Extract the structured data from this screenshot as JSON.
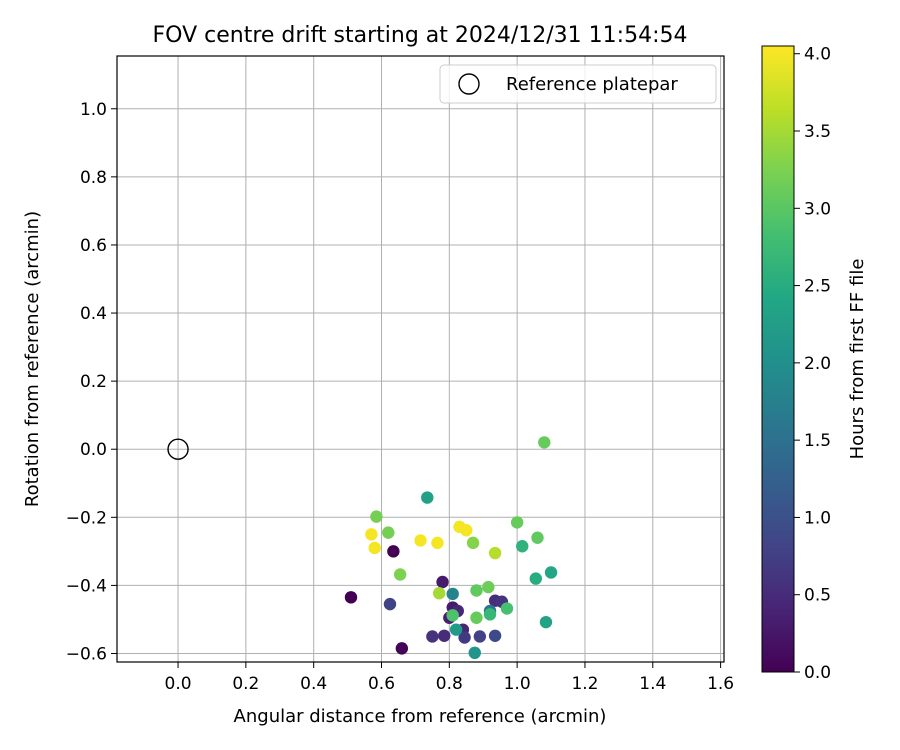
{
  "chart_data": {
    "type": "scatter",
    "title": "FOV centre drift starting at 2024/12/31 11:54:54",
    "xlabel": "Angular distance from reference (arcmin)",
    "ylabel": "Rotation from reference (arcmin)",
    "xlim": [
      -0.18,
      1.61
    ],
    "ylim": [
      -0.625,
      1.155
    ],
    "xticks": [
      0.0,
      0.2,
      0.4,
      0.6,
      0.8,
      1.0,
      1.2,
      1.4,
      1.6
    ],
    "xtick_labels": [
      "0.0",
      "0.2",
      "0.4",
      "0.6",
      "0.8",
      "1.0",
      "1.2",
      "1.4",
      "1.6"
    ],
    "yticks": [
      -0.6,
      -0.4,
      -0.2,
      0.0,
      0.2,
      0.4,
      0.6,
      0.8,
      1.0
    ],
    "ytick_labels": [
      "−0.6",
      "−0.4",
      "−0.2",
      "0.0",
      "0.2",
      "0.4",
      "0.6",
      "0.8",
      "1.0"
    ],
    "grid": true,
    "legend": {
      "position": "top-right",
      "entries": [
        "Reference platepar"
      ]
    },
    "reference_point": {
      "x": 0.0,
      "y": 0.0,
      "label": "Reference platepar"
    },
    "colorbar": {
      "label": "Hours from first FF file",
      "colormap": "viridis",
      "range": [
        0.0,
        4.05
      ],
      "ticks": [
        0.0,
        0.5,
        1.0,
        1.5,
        2.0,
        2.5,
        3.0,
        3.5,
        4.0
      ],
      "tick_labels": [
        "0.0",
        "0.5",
        "1.0",
        "1.5",
        "2.0",
        "2.5",
        "3.0",
        "3.5",
        "4.0"
      ]
    },
    "points": [
      {
        "x": 0.51,
        "y": -0.435,
        "c": 0.0
      },
      {
        "x": 0.635,
        "y": -0.3,
        "c": 0.0
      },
      {
        "x": 0.66,
        "y": -0.585,
        "c": 0.05
      },
      {
        "x": 0.78,
        "y": -0.39,
        "c": 0.3
      },
      {
        "x": 0.625,
        "y": -0.455,
        "c": 0.8
      },
      {
        "x": 0.75,
        "y": -0.55,
        "c": 0.6
      },
      {
        "x": 0.785,
        "y": -0.548,
        "c": 0.5
      },
      {
        "x": 0.81,
        "y": -0.465,
        "c": 0.3
      },
      {
        "x": 0.825,
        "y": -0.475,
        "c": 0.45
      },
      {
        "x": 0.8,
        "y": -0.495,
        "c": 0.35
      },
      {
        "x": 0.84,
        "y": -0.53,
        "c": 0.4
      },
      {
        "x": 0.845,
        "y": -0.553,
        "c": 0.7
      },
      {
        "x": 0.89,
        "y": -0.55,
        "c": 0.8
      },
      {
        "x": 0.935,
        "y": -0.445,
        "c": 0.55
      },
      {
        "x": 0.955,
        "y": -0.448,
        "c": 0.6
      },
      {
        "x": 0.935,
        "y": -0.548,
        "c": 0.9
      },
      {
        "x": 0.92,
        "y": -0.475,
        "c": 1.6
      },
      {
        "x": 0.81,
        "y": -0.425,
        "c": 1.8
      },
      {
        "x": 0.875,
        "y": -0.598,
        "c": 2.1
      },
      {
        "x": 0.82,
        "y": -0.53,
        "c": 2.2
      },
      {
        "x": 0.735,
        "y": -0.142,
        "c": 2.3
      },
      {
        "x": 1.015,
        "y": -0.285,
        "c": 2.6
      },
      {
        "x": 1.055,
        "y": -0.38,
        "c": 2.5
      },
      {
        "x": 1.1,
        "y": -0.362,
        "c": 2.4
      },
      {
        "x": 1.085,
        "y": -0.508,
        "c": 2.35
      },
      {
        "x": 0.92,
        "y": -0.485,
        "c": 2.7
      },
      {
        "x": 0.97,
        "y": -0.468,
        "c": 2.85
      },
      {
        "x": 0.81,
        "y": -0.488,
        "c": 2.9
      },
      {
        "x": 0.88,
        "y": -0.495,
        "c": 3.1
      },
      {
        "x": 0.88,
        "y": -0.415,
        "c": 3.05
      },
      {
        "x": 0.915,
        "y": -0.405,
        "c": 3.15
      },
      {
        "x": 1.0,
        "y": -0.215,
        "c": 3.1
      },
      {
        "x": 1.06,
        "y": -0.26,
        "c": 3.05
      },
      {
        "x": 1.08,
        "y": 0.02,
        "c": 3.1
      },
      {
        "x": 0.585,
        "y": -0.198,
        "c": 3.2
      },
      {
        "x": 0.62,
        "y": -0.245,
        "c": 3.2
      },
      {
        "x": 0.655,
        "y": -0.368,
        "c": 3.25
      },
      {
        "x": 0.87,
        "y": -0.275,
        "c": 3.3
      },
      {
        "x": 0.77,
        "y": -0.423,
        "c": 3.5
      },
      {
        "x": 0.935,
        "y": -0.305,
        "c": 3.6
      },
      {
        "x": 0.57,
        "y": -0.25,
        "c": 4.0
      },
      {
        "x": 0.58,
        "y": -0.29,
        "c": 4.0
      },
      {
        "x": 0.715,
        "y": -0.268,
        "c": 4.0
      },
      {
        "x": 0.765,
        "y": -0.275,
        "c": 4.0
      },
      {
        "x": 0.83,
        "y": -0.228,
        "c": 4.0
      },
      {
        "x": 0.85,
        "y": -0.238,
        "c": 4.0
      }
    ]
  }
}
